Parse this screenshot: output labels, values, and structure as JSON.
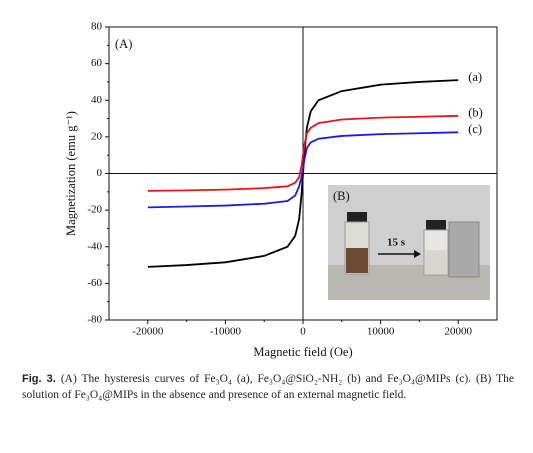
{
  "chart_data": {
    "type": "line",
    "ylabel": "Magnetization (emu g⁻¹)",
    "xlabel": "Magnetic field (Oe)",
    "annotations": [
      "(A)",
      "(B)",
      "15 s"
    ],
    "x": [
      -20000,
      -15000,
      -10000,
      -5000,
      -2000,
      -1000,
      -500,
      -200,
      0,
      200,
      500,
      1000,
      2000,
      5000,
      10000,
      15000,
      20000
    ],
    "series": [
      {
        "name": "(a)",
        "color": "#000000",
        "values": [
          -51,
          -50,
          -48.5,
          -45,
          -40,
          -34,
          -25,
          -12,
          0,
          12,
          25,
          34,
          40,
          45,
          48.5,
          50,
          51
        ]
      },
      {
        "name": "(b)",
        "color": "#e8141a",
        "values": [
          -9.5,
          -9.2,
          -8.8,
          -8,
          -7,
          -5,
          -2,
          4,
          10,
          16,
          22,
          25,
          27.5,
          29.5,
          30.5,
          31,
          31.5
        ]
      },
      {
        "name": "(c)",
        "color": "#1a1ae8",
        "values": [
          -18.5,
          -18,
          -17.5,
          -16.5,
          -15,
          -12,
          -7,
          -2,
          3,
          8,
          14,
          17,
          19,
          20.5,
          21.5,
          22,
          22.5
        ]
      }
    ],
    "xlim": [
      -25000,
      25000
    ],
    "xticks": [
      -20000,
      -10000,
      0,
      10000,
      20000
    ],
    "ylim": [
      -80,
      80
    ],
    "yticks": [
      -80,
      -60,
      -40,
      -20,
      0,
      20,
      40,
      60,
      80
    ]
  },
  "caption": {
    "label": "Fig. 3.",
    "text": "(A) The hysteresis curves of Fe₃O₄ (a), Fe₃O₄@SiO₂-NH₂ (b) and Fe₃O₄@MIPs (c). (B) The solution of Fe₃O₄@MIPs in the absence and presence of an external magnetic field."
  }
}
